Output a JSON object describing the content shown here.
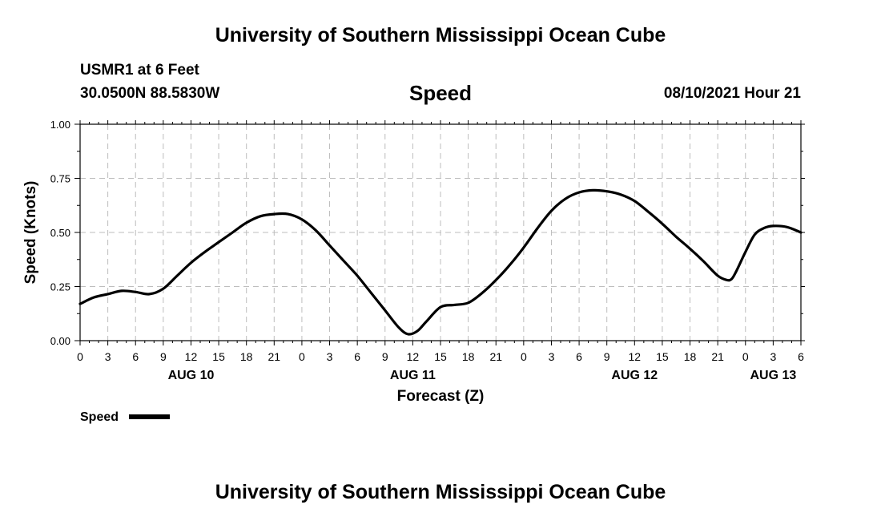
{
  "header": {
    "title": "University of Southern Mississippi Ocean Cube",
    "station": "USMR1 at 6 Feet",
    "coordinates": "30.0500N  88.5830W",
    "variable": "Speed",
    "datetime": "08/10/2021 Hour 21"
  },
  "footer": {
    "title": "University of Southern Mississippi Ocean Cube"
  },
  "chart_data": {
    "type": "line",
    "xlabel": "Forecast (Z)",
    "ylabel": "Speed (Knots)",
    "xlim_hours": [
      0,
      78
    ],
    "ylim": [
      0,
      1
    ],
    "yticks": [
      "0.00",
      "0.25",
      "0.50",
      "0.75",
      "1.00"
    ],
    "xtick_labels": [
      "0",
      "3",
      "6",
      "9",
      "12",
      "15",
      "18",
      "21",
      "0",
      "3",
      "6",
      "9",
      "12",
      "15",
      "18",
      "21",
      "0",
      "3",
      "6",
      "9",
      "12",
      "15",
      "18",
      "21",
      "0",
      "3",
      "6"
    ],
    "date_labels": [
      {
        "label": "AUG 10",
        "hour": 12
      },
      {
        "label": "AUG 11",
        "hour": 36
      },
      {
        "label": "AUG 12",
        "hour": 60
      },
      {
        "label": "AUG 13",
        "hour": 75
      }
    ],
    "grid": true,
    "legend": "bottom-left",
    "series": [
      {
        "name": "Speed",
        "color": "#000000",
        "x": [
          0,
          1.5,
          3,
          4.5,
          6,
          7.5,
          9,
          10.5,
          12,
          13.5,
          15,
          16.5,
          18,
          19.5,
          21,
          22.5,
          24,
          25.5,
          27,
          28.5,
          30,
          31.5,
          33,
          34.5,
          35.5,
          36.5,
          37.5,
          39,
          40.5,
          42,
          43.5,
          45,
          46.5,
          48,
          49.5,
          51,
          52.5,
          54,
          55.5,
          57,
          58.5,
          60,
          61.5,
          63,
          64.5,
          66,
          67.5,
          69,
          70,
          70.5,
          71,
          72,
          73,
          74,
          75,
          76.5,
          78
        ],
        "values": [
          0.17,
          0.2,
          0.215,
          0.23,
          0.225,
          0.215,
          0.24,
          0.3,
          0.36,
          0.41,
          0.455,
          0.5,
          0.545,
          0.575,
          0.585,
          0.585,
          0.56,
          0.51,
          0.44,
          0.37,
          0.3,
          0.22,
          0.14,
          0.06,
          0.03,
          0.045,
          0.09,
          0.155,
          0.165,
          0.175,
          0.22,
          0.28,
          0.35,
          0.43,
          0.52,
          0.6,
          0.655,
          0.685,
          0.695,
          0.69,
          0.675,
          0.645,
          0.595,
          0.54,
          0.48,
          0.425,
          0.365,
          0.3,
          0.28,
          0.285,
          0.32,
          0.41,
          0.49,
          0.52,
          0.53,
          0.525,
          0.5
        ]
      }
    ]
  }
}
